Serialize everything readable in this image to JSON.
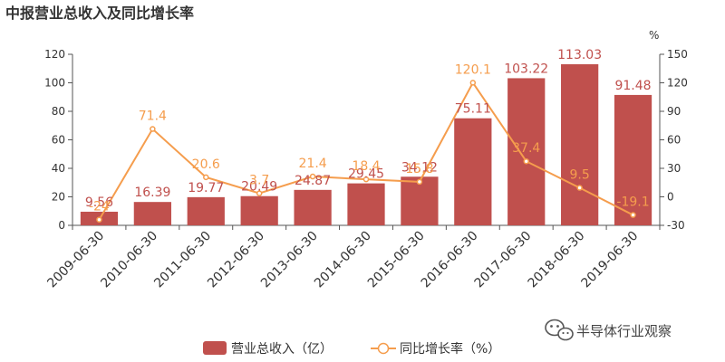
{
  "colors": {
    "bar": "#c0504d",
    "line": "#f59d4d",
    "axis": "#555555",
    "text": "#333333"
  },
  "watermark": {
    "text": "半导体行业观察",
    "icon": "wechat-icon"
  },
  "chart_data": {
    "type": "bar",
    "title": "中报营业总收入及同比增长率",
    "categories": [
      "2009-06-30",
      "2010-06-30",
      "2011-06-30",
      "2012-06-30",
      "2013-06-30",
      "2014-06-30",
      "2015-06-30",
      "2016-06-30",
      "2017-06-30",
      "2018-06-30",
      "2019-06-30"
    ],
    "series": [
      {
        "name": "营业总收入（亿）",
        "type": "bar",
        "axis": "left",
        "values": [
          9.56,
          16.39,
          19.77,
          20.49,
          24.87,
          29.45,
          34.12,
          75.11,
          103.22,
          113.03,
          91.48
        ]
      },
      {
        "name": "同比增长率（%）",
        "type": "line",
        "axis": "right",
        "values": [
          -24.0,
          71.4,
          20.6,
          3.7,
          21.4,
          18.4,
          15.8,
          120.1,
          37.4,
          9.5,
          -19.1
        ]
      }
    ],
    "y_left": {
      "ticks": [
        0,
        20,
        40,
        60,
        80,
        100,
        120
      ],
      "ylim": [
        0,
        120
      ]
    },
    "y_right": {
      "ticks": [
        -30,
        0,
        30,
        60,
        90,
        120,
        150
      ],
      "ylim": [
        -30,
        150
      ],
      "unit": "%"
    },
    "grid": false,
    "legend": "bottom-center"
  }
}
